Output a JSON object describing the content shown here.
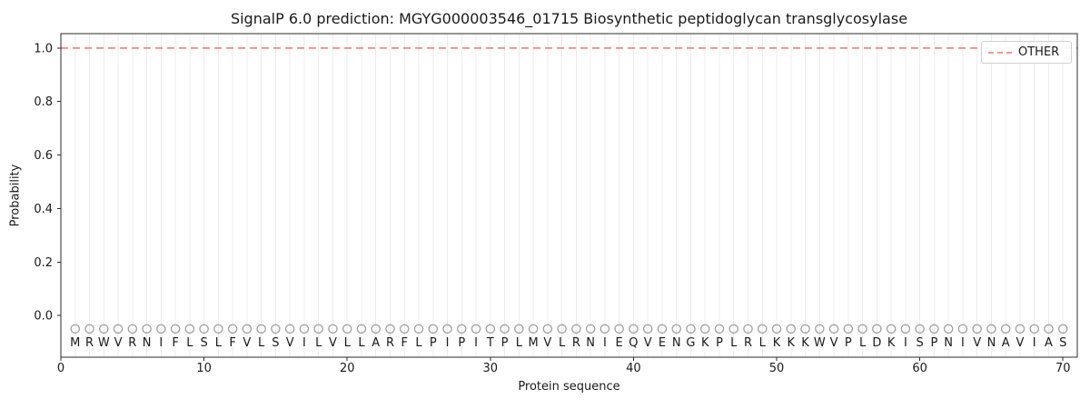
{
  "chart_data": {
    "type": "line",
    "title": "SignalP 6.0 prediction: MGYG000003546_01715 Biosynthetic peptidoglycan transglycosylase",
    "xlabel": "Protein sequence",
    "ylabel": "Probability",
    "xlim": [
      0,
      71
    ],
    "ylim": [
      -0.156,
      1.054
    ],
    "x_ticks": [
      0,
      10,
      20,
      30,
      40,
      50,
      60,
      70
    ],
    "y_ticks": [
      0.0,
      0.2,
      0.4,
      0.6,
      0.8,
      1.0
    ],
    "y_tick_labels": [
      "0.0",
      "0.2",
      "0.4",
      "0.6",
      "0.8",
      "1.0"
    ],
    "grid": "vertical gridline at every residue position 1-70",
    "legend": {
      "position": "upper right",
      "items": [
        {
          "label": "OTHER",
          "style": "dashed",
          "color": "#ee8888"
        }
      ]
    },
    "series": [
      {
        "name": "OTHER",
        "style": "dashed",
        "color": "#ee8888",
        "x_span": [
          0,
          71
        ],
        "y_constant": 1.0,
        "note": "constant probability 1.0 across all 70 residues"
      }
    ],
    "sequence": {
      "residues": "MRWVRNIFLSLFVLSVILVLLARFLPIPITPLMVLRNIEQVENGKPLRLKKKWVPLDKISPNIVNAVIAS",
      "first_position": 1,
      "last_position": 70,
      "marker_y": -0.05,
      "letter_y": -0.1
    },
    "colors": {
      "other_line": "#ee8888",
      "gridline": "#ececec",
      "marker_edge": "#9e9e9e",
      "letter": "#1a1a1a",
      "spine": "#2b2b2b",
      "tick_label": "#1a1a1a",
      "legend_border": "#cfcfcf"
    }
  }
}
